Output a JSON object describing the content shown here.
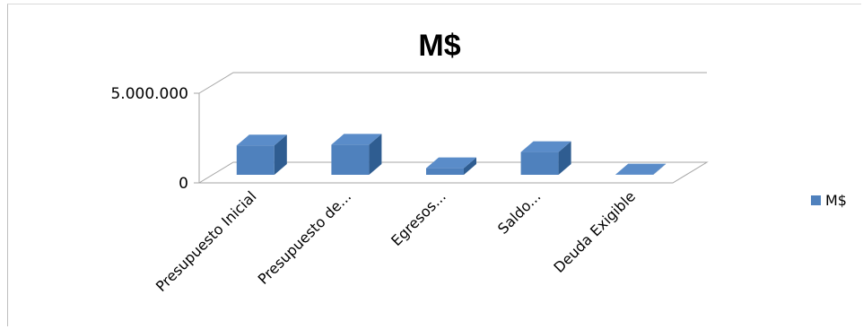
{
  "chart_data": {
    "type": "bar",
    "title": "M$",
    "categories": [
      "Presupuesto Inicial",
      "Presupuesto de...",
      "Egresos...",
      "Saldo...",
      "Deuda Exigible"
    ],
    "series": [
      {
        "name": "M$",
        "values": [
          2000000,
          2050000,
          450000,
          1550000,
          20000
        ],
        "color": "#4f81bd"
      }
    ],
    "ylim": [
      0,
      5000000
    ],
    "yticks": [
      {
        "value": 0,
        "label": "0"
      },
      {
        "value": 5000000,
        "label": "5.000.000"
      }
    ],
    "legend_position": "right",
    "grid": false,
    "style": "3d-column"
  }
}
